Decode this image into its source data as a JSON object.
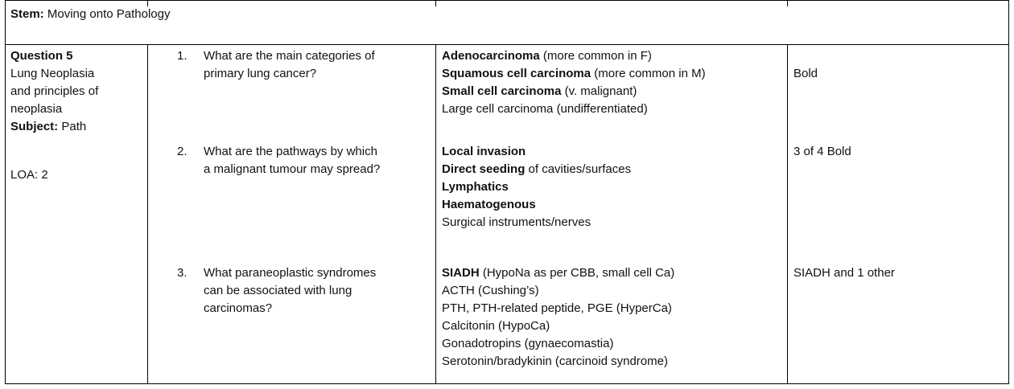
{
  "stem": {
    "label": "Stem:",
    "value": "Moving onto Pathology"
  },
  "question_cell": {
    "title": "Question 5",
    "topic_lines": [
      "Lung Neoplasia",
      "and principles of",
      "neoplasia"
    ],
    "subject_label": "Subject:",
    "subject_value": "Path",
    "loa": "LOA: 2"
  },
  "items": [
    {
      "number": "1.",
      "question_lines": [
        "What are the main categories of",
        "primary lung cancer?"
      ],
      "answers": [
        {
          "bold": "Adenocarcinoma",
          "rest": " (more common in F)"
        },
        {
          "bold": "Squamous cell carcinoma",
          "rest": " (more common in M)"
        },
        {
          "bold": "Small cell carcinoma",
          "rest": " (v. malignant)"
        },
        {
          "bold": "",
          "rest": "Large cell carcinoma (undifferentiated)"
        }
      ],
      "mark": "Bold"
    },
    {
      "number": "2.",
      "question_lines": [
        "What are the pathways by which",
        "a malignant tumour may spread?"
      ],
      "answers": [
        {
          "bold": "Local invasion",
          "rest": ""
        },
        {
          "bold": "Direct seeding",
          "rest": " of cavities/surfaces"
        },
        {
          "bold": "Lymphatics",
          "rest": ""
        },
        {
          "bold": "Haematogenous",
          "rest": ""
        },
        {
          "bold": "",
          "rest": "Surgical instruments/nerves"
        }
      ],
      "mark": "3 of 4 Bold"
    },
    {
      "number": "3.",
      "question_lines": [
        "What paraneoplastic syndromes",
        "can be associated with lung",
        "carcinomas?"
      ],
      "answers": [
        {
          "bold": "SIADH",
          "rest": " (HypoNa as per CBB, small cell Ca)"
        },
        {
          "bold": "",
          "rest": "ACTH (Cushing’s)"
        },
        {
          "bold": "",
          "rest": "PTH, PTH-related peptide, PGE (HyperCa)"
        },
        {
          "bold": "",
          "rest": "Calcitonin (HypoCa)"
        },
        {
          "bold": "",
          "rest": "Gonadotropins (gynaecomastia)"
        },
        {
          "bold": "",
          "rest": "Serotonin/bradykinin (carcinoid syndrome)"
        }
      ],
      "mark": "SIADH and 1 other"
    }
  ]
}
